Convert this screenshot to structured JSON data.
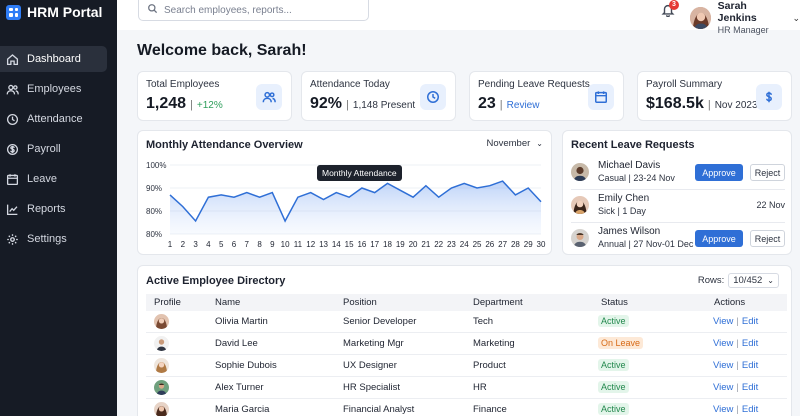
{
  "app": {
    "title": "HRM Portal"
  },
  "sidebar": {
    "items": [
      {
        "label": "Dashboard",
        "icon": "home-icon",
        "active": true
      },
      {
        "label": "Employees",
        "icon": "users-icon"
      },
      {
        "label": "Attendance",
        "icon": "clock-icon"
      },
      {
        "label": "Payroll",
        "icon": "dollar-icon"
      },
      {
        "label": "Leave",
        "icon": "calendar-icon"
      },
      {
        "label": "Reports",
        "icon": "chart-icon"
      },
      {
        "label": "Settings",
        "icon": "gear-icon"
      }
    ]
  },
  "header": {
    "search_placeholder": "Search employees, reports...",
    "notifications_count": "3",
    "user": {
      "name": "Sarah Jenkins",
      "role": "HR Manager"
    }
  },
  "welcome": "Welcome back, Sarah!",
  "stats": [
    {
      "label": "Total Employees",
      "value": "1,248",
      "sub": "+12%",
      "icon": "users-icon"
    },
    {
      "label": "Attendance Today",
      "value": "92%",
      "sub": "1,148 Present",
      "icon": "clock-icon"
    },
    {
      "label": "Pending Leave Requests",
      "value": "23",
      "sub": "Review",
      "icon": "calendar-icon"
    },
    {
      "label": "Payroll Summary",
      "value": "$168.5k",
      "sub": "Nov 2023",
      "icon": "dollar-icon"
    }
  ],
  "attendance_chart": {
    "title": "Monthly Attendance Overview",
    "month": "November",
    "tooltip": "Monthly Attendance"
  },
  "chart_data": {
    "type": "area",
    "title": "Monthly Attendance Overview",
    "x": [
      1,
      2,
      3,
      4,
      5,
      6,
      7,
      8,
      9,
      10,
      11,
      12,
      13,
      14,
      15,
      16,
      17,
      18,
      19,
      20,
      21,
      22,
      23,
      24,
      25,
      26,
      27,
      28,
      29,
      30
    ],
    "series": [
      {
        "name": "Monthly Attendance",
        "values": [
          87,
          83,
          80,
          86,
          87,
          86,
          88,
          86,
          88,
          80,
          86,
          88,
          85,
          88,
          86,
          90,
          88,
          92,
          89,
          86,
          91,
          86,
          90,
          92,
          90,
          91,
          93,
          87,
          90,
          84
        ]
      }
    ],
    "y_ticks": [
      "100%",
      "90%",
      "80%",
      "80%"
    ],
    "ylim": [
      80,
      100
    ],
    "grid": true,
    "accent": "#2f6fd6"
  },
  "leave_requests": {
    "title": "Recent Leave Requests",
    "approve_label": "Approve",
    "reject_label": "Reject",
    "items": [
      {
        "name": "Michael Davis",
        "detail": "Casual | 23-24 Nov",
        "actions": true
      },
      {
        "name": "Emily Chen",
        "detail": "Sick | 1 Day",
        "date": "22 Nov",
        "actions": false
      },
      {
        "name": "James Wilson",
        "detail": "Annual | 27 Nov-01 Dec",
        "actions": true
      }
    ]
  },
  "directory": {
    "title": "Active Employee Directory",
    "rows_label": "Rows:",
    "rows_value": "10/452",
    "columns": [
      "Profile",
      "Name",
      "Position",
      "Department",
      "Status",
      "Actions"
    ],
    "view_label": "View",
    "edit_label": "Edit",
    "rows": [
      {
        "name": "Olivia Martin",
        "position": "Senior Developer",
        "department": "Tech",
        "status": "Active"
      },
      {
        "name": "David Lee",
        "position": "Marketing Mgr",
        "department": "Marketing",
        "status": "On Leave"
      },
      {
        "name": "Sophie Dubois",
        "position": "UX Designer",
        "department": "Product",
        "status": "Active"
      },
      {
        "name": "Alex Turner",
        "position": "HR Specialist",
        "department": "HR",
        "status": "Active"
      },
      {
        "name": "Maria Garcia",
        "position": "Financial Analyst",
        "department": "Finance",
        "status": "Active"
      }
    ]
  }
}
